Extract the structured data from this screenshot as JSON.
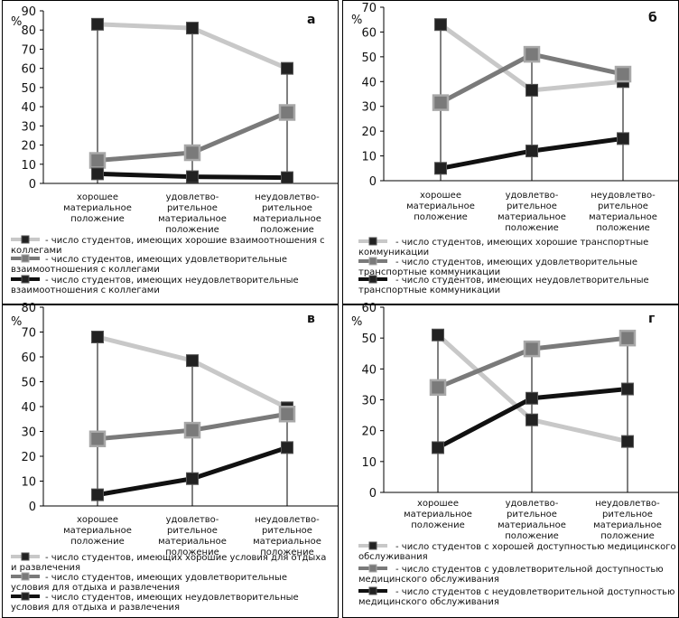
{
  "chart_data": [
    {
      "type": "line",
      "panel_letter": "а",
      "y_unit": "%",
      "ylim": [
        0,
        90
      ],
      "y_ticks": [
        "0",
        "10",
        "20",
        "30",
        "40",
        "50",
        "60",
        "70",
        "80",
        "90"
      ],
      "categories": [
        [
          "хорошее",
          "материальное",
          "положение"
        ],
        [
          "удовлетво-",
          "рительное",
          "материальное",
          "положение"
        ],
        [
          "неудовлетво-",
          "рительное",
          "материальное",
          "положение"
        ]
      ],
      "series": [
        {
          "values": [
            83,
            81,
            60
          ],
          "color": "#c8c8c8",
          "marker_fill": "#222222"
        },
        {
          "values": [
            12,
            16,
            37
          ],
          "color": "#7a7a7a",
          "marker_fill": "#7a7a7a"
        },
        {
          "values": [
            5,
            3.5,
            3
          ],
          "color": "#111111",
          "marker_fill": "#222222"
        }
      ],
      "legend": [
        [
          "- число студентов, имеющих хорошие взаимоотношения с",
          "коллегами"
        ],
        [
          "- число студентов, имеющих удовлетворительные",
          "взаимоотношения с коллегами"
        ],
        [
          "- число студентов, имеющих неудовлетворительные",
          "взаимоотношения с коллегами"
        ]
      ],
      "grid": false
    },
    {
      "type": "line",
      "panel_letter": "б",
      "y_unit": "%",
      "ylim": [
        0,
        70
      ],
      "y_ticks": [
        "0",
        "10",
        "20",
        "30",
        "40",
        "50",
        "60",
        "70"
      ],
      "categories": [
        [
          "хорошее",
          "материальное",
          "положение"
        ],
        [
          "удовлетво-",
          "рительное",
          "материальное",
          "положение"
        ],
        [
          "неудовлетво-",
          "рительное",
          "материальное",
          "положение"
        ]
      ],
      "series": [
        {
          "values": [
            63,
            36.5,
            40
          ],
          "color": "#c8c8c8",
          "marker_fill": "#222222"
        },
        {
          "values": [
            31.5,
            51,
            43
          ],
          "color": "#7a7a7a",
          "marker_fill": "#7a7a7a"
        },
        {
          "values": [
            5,
            12,
            17
          ],
          "color": "#111111",
          "marker_fill": "#222222"
        }
      ],
      "legend": [
        [
          "- число студентов, имеющих хорошие транспортные",
          "коммуникации"
        ],
        [
          "- число студентов, имеющих удовлетворительные",
          "транспортные коммуникации"
        ],
        [
          "- число студентов, имеющих неудовлетворительные",
          "транспортные коммуникации"
        ]
      ],
      "grid": false
    },
    {
      "type": "line",
      "panel_letter": "в",
      "y_unit": "%",
      "ylim": [
        0,
        80
      ],
      "y_ticks": [
        "0",
        "10",
        "20",
        "30",
        "40",
        "50",
        "60",
        "70",
        "80"
      ],
      "categories": [
        [
          "хорошее",
          "материальное",
          "положение"
        ],
        [
          "удовлетво-",
          "рительное",
          "материальное",
          "положение"
        ],
        [
          "неудовлетво-",
          "рительное",
          "материальное",
          "положение"
        ]
      ],
      "series": [
        {
          "values": [
            68,
            58.5,
            39.5
          ],
          "color": "#c8c8c8",
          "marker_fill": "#222222"
        },
        {
          "values": [
            27,
            30.5,
            37
          ],
          "color": "#7a7a7a",
          "marker_fill": "#7a7a7a"
        },
        {
          "values": [
            4.5,
            11,
            23.5
          ],
          "color": "#111111",
          "marker_fill": "#222222"
        }
      ],
      "legend": [
        [
          "- число студентов, имеющих хорошие условия для отдыха",
          "и развлечения"
        ],
        [
          "- число студентов, имеющих удовлетворительные",
          "условия для отдыха и развлечения"
        ],
        [
          "- число студентов, имеющих неудовлетворительные",
          "условия для отдыха и развлечения"
        ]
      ],
      "grid": false
    },
    {
      "type": "line",
      "panel_letter": "г",
      "y_unit": "%",
      "ylim": [
        0,
        60
      ],
      "y_ticks": [
        "0",
        "10",
        "20",
        "30",
        "40",
        "50",
        "60"
      ],
      "categories": [
        [
          "хорошее",
          "материальное",
          "положение"
        ],
        [
          "удовлетво-",
          "рительное",
          "материальное",
          "положение"
        ],
        [
          "неудовлетво-",
          "рительное",
          "материальное",
          "положение"
        ]
      ],
      "series": [
        {
          "values": [
            51,
            23.5,
            16.5
          ],
          "color": "#c8c8c8",
          "marker_fill": "#222222"
        },
        {
          "values": [
            34,
            46.5,
            50
          ],
          "color": "#7a7a7a",
          "marker_fill": "#7a7a7a"
        },
        {
          "values": [
            14.5,
            30.5,
            33.5
          ],
          "color": "#111111",
          "marker_fill": "#222222"
        }
      ],
      "legend": [
        [
          "- число студентов с хорошей доступностью медицинского",
          "обслуживания"
        ],
        [
          "- число студентов с удовлетворительной доступностью",
          "медицинского обслуживания"
        ],
        [
          "- число студентов с неудовлетворительной доступностью",
          "медицинского обслуживания"
        ]
      ],
      "grid": false
    }
  ]
}
